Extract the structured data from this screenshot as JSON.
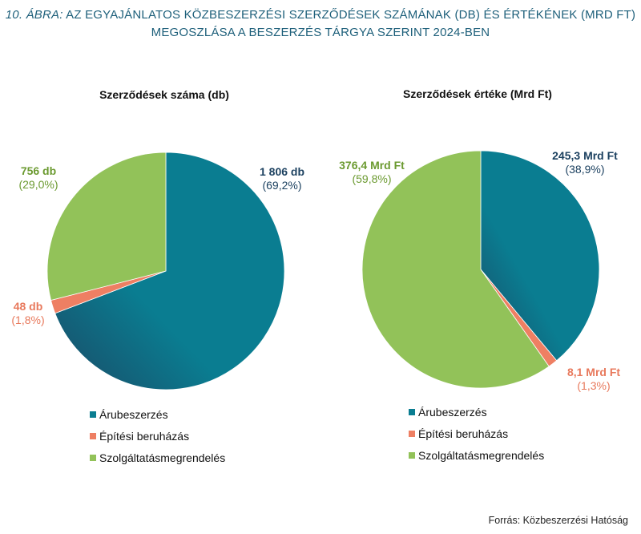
{
  "figure": {
    "title_prefix": "10. ÁBRA:",
    "title_line1": "AZ EGYAJÁNLATOS KÖZBESZERZÉSI SZERZŐDÉSEK SZÁMÁNAK (DB) ÉS ÉRTÉKÉNEK (MRD FT)",
    "title_line2": "MEGOSZLÁSA A BESZERZÉS TÁRGYA SZERINT 2024-BEN",
    "source": "Forrás: Közbeszerzési Hatóság"
  },
  "colors": {
    "arubeszerzes": "#0a7d91",
    "arubeszerzes_dark": "#1a4a66",
    "epitesi": "#ee7f63",
    "szolgaltatas": "#92c259",
    "label_dark": "#1c4160",
    "label_green": "#6b9a30",
    "label_orange": "#e8795c"
  },
  "chart_data": [
    {
      "type": "pie",
      "title": "Szerződések száma (db)",
      "slices": [
        {
          "category": "Árubeszerzés",
          "value": 1806,
          "percent": 69.2,
          "value_label": "1 806 db",
          "percent_label": "(69,2%)"
        },
        {
          "category": "Építési beruházás",
          "value": 48,
          "percent": 1.8,
          "value_label": "48 db",
          "percent_label": "(1,8%)"
        },
        {
          "category": "Szolgáltatásmegrendelés",
          "value": 756,
          "percent": 29.0,
          "value_label": "756 db",
          "percent_label": "(29,0%)"
        }
      ],
      "legend": [
        "Árubeszerzés",
        "Építési beruházás",
        "Szolgáltatásmegrendelés"
      ]
    },
    {
      "type": "pie",
      "title": "Szerződések értéke (Mrd Ft)",
      "slices": [
        {
          "category": "Árubeszerzés",
          "value": 245.3,
          "percent": 38.9,
          "value_label": "245,3 Mrd Ft",
          "percent_label": "(38,9%)"
        },
        {
          "category": "Építési beruházás",
          "value": 8.1,
          "percent": 1.3,
          "value_label": "8,1 Mrd Ft",
          "percent_label": "(1,3%)"
        },
        {
          "category": "Szolgáltatásmegrendelés",
          "value": 376.4,
          "percent": 59.8,
          "value_label": "376,4 Mrd Ft",
          "percent_label": "(59,8%)"
        }
      ],
      "legend": [
        "Árubeszerzés",
        "Építési beruházás",
        "Szolgáltatásmegrendelés"
      ]
    }
  ]
}
